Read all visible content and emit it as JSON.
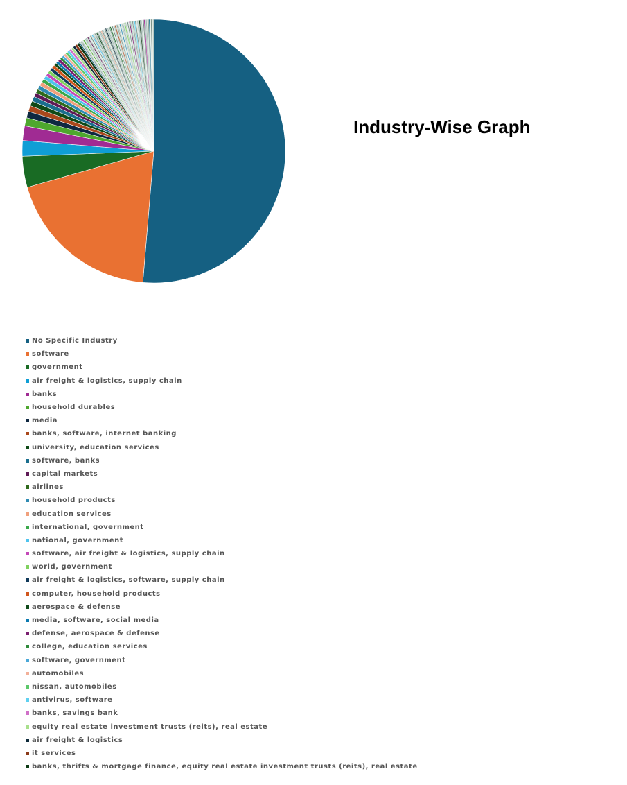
{
  "chart_data": {
    "type": "pie",
    "title": "Industry-Wise Graph",
    "legend_position": "bottom-left",
    "start_angle_deg": 0,
    "direction": "clockwise",
    "slices": [
      {
        "label": "No Specific Industry",
        "value": 51.2,
        "color": "#156082"
      },
      {
        "label": "software",
        "value": 19.2,
        "color": "#E97132"
      },
      {
        "label": "government",
        "value": 3.8,
        "color": "#196B24"
      },
      {
        "label": "air freight & logistics, supply chain",
        "value": 1.9,
        "color": "#0F9ED5"
      },
      {
        "label": "banks",
        "value": 1.8,
        "color": "#A02B93"
      },
      {
        "label": "household durables",
        "value": 1.0,
        "color": "#4EA72E"
      },
      {
        "label": "media",
        "value": 0.8,
        "color": "#0E2841"
      },
      {
        "label": "banks, software, internet banking",
        "value": 0.7,
        "color": "#A9481C"
      },
      {
        "label": "university, education services",
        "value": 0.6,
        "color": "#0F4A17"
      },
      {
        "label": "software, banks",
        "value": 0.6,
        "color": "#1A6E8E"
      },
      {
        "label": "capital markets",
        "value": 0.5,
        "color": "#5F1A56"
      },
      {
        "label": "airlines",
        "value": 0.5,
        "color": "#2F6A1C"
      },
      {
        "label": "household products",
        "value": 0.5,
        "color": "#2F8BB3"
      },
      {
        "label": "education services",
        "value": 0.5,
        "color": "#F0A07C"
      },
      {
        "label": "international, government",
        "value": 0.45,
        "color": "#3AA84A"
      },
      {
        "label": "national, government",
        "value": 0.45,
        "color": "#4FC3EE"
      },
      {
        "label": "software, air freight & logistics, supply chain",
        "value": 0.4,
        "color": "#C448B8"
      },
      {
        "label": "world, government",
        "value": 0.4,
        "color": "#7FD15E"
      },
      {
        "label": "air freight & logistics, software, supply chain",
        "value": 0.4,
        "color": "#103A5A"
      },
      {
        "label": "computer, household products",
        "value": 0.4,
        "color": "#D0561C"
      },
      {
        "label": "aerospace & defense",
        "value": 0.35,
        "color": "#104A1A"
      },
      {
        "label": "media, software, social media",
        "value": 0.35,
        "color": "#0C7AB0"
      },
      {
        "label": "defense, aerospace & defense",
        "value": 0.35,
        "color": "#7A1F70"
      },
      {
        "label": "college, education services",
        "value": 0.3,
        "color": "#2E8A3A"
      },
      {
        "label": "software, government",
        "value": 0.3,
        "color": "#4AA8D8"
      },
      {
        "label": "automobiles",
        "value": 0.3,
        "color": "#F2B099"
      },
      {
        "label": "nissan, automobiles",
        "value": 0.3,
        "color": "#5CC86A"
      },
      {
        "label": "antivirus, software",
        "value": 0.3,
        "color": "#5FD0F0"
      },
      {
        "label": "banks, savings bank",
        "value": 0.3,
        "color": "#D070C8"
      },
      {
        "label": "equity real estate investment trusts (reits), real estate",
        "value": 0.3,
        "color": "#A8E08C"
      },
      {
        "label": "air freight & logistics",
        "value": 0.3,
        "color": "#0D2A3A"
      },
      {
        "label": "it services",
        "value": 0.3,
        "color": "#8A3A1A"
      },
      {
        "label": "banks, thrifts & mortgage finance, equity real estate investment trusts (reits), real estate",
        "value": 0.3,
        "color": "#0D3A14"
      }
    ],
    "unlabeled_small_slices": [
      0.12,
      0.12,
      0.12,
      0.12,
      0.12,
      0.12,
      0.12,
      0.12,
      0.12,
      0.12,
      0.12,
      0.12,
      0.12,
      0.12,
      0.12,
      0.12,
      0.12,
      0.12,
      0.12,
      0.12,
      0.12,
      0.12,
      0.12,
      0.12,
      0.12,
      0.12,
      0.12,
      0.12,
      0.12,
      0.12,
      0.12,
      0.12,
      0.12,
      0.12,
      0.12,
      0.12,
      0.12,
      0.12,
      0.12,
      0.12,
      0.12,
      0.12,
      0.12,
      0.12,
      0.12,
      0.12,
      0.12,
      0.12,
      0.12,
      0.12,
      0.12,
      0.12,
      0.12,
      0.12,
      0.12,
      0.12,
      0.12,
      0.12,
      0.12,
      0.12,
      0.12,
      0.12,
      0.12,
      0.12,
      0.12,
      0.12,
      0.12,
      0.12,
      0.12,
      0.12,
      0.12,
      0.12,
      0.12,
      0.12,
      0.12,
      0.12,
      0.12,
      0.12,
      0.12,
      0.12
    ]
  }
}
